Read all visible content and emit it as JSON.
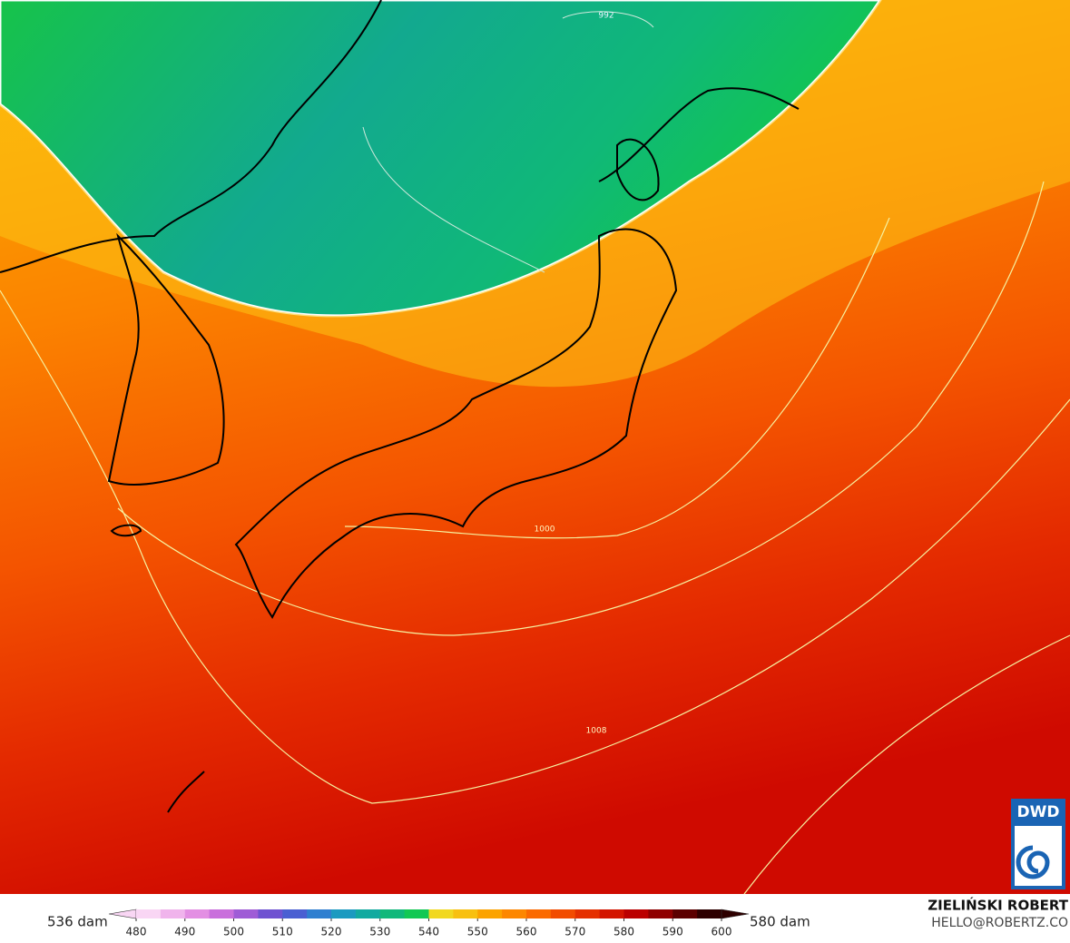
{
  "map": {
    "contour_labels": [
      {
        "text": "992"
      },
      {
        "text": "1000"
      },
      {
        "text": "1008"
      }
    ]
  },
  "colorbar": {
    "min_label": "536 dam",
    "max_label": "580 dam",
    "ticks": [
      480,
      490,
      500,
      510,
      520,
      530,
      540,
      550,
      560,
      570,
      580,
      590,
      600
    ],
    "colors": [
      "#f9d6f4",
      "#f0b4ec",
      "#e38fe3",
      "#c96fdc",
      "#9f5cd6",
      "#6f52d1",
      "#4a5fd2",
      "#2f7fd0",
      "#1b9ac0",
      "#12aaa0",
      "#10b87a",
      "#12c853",
      "#f1d820",
      "#f8c010",
      "#fca300",
      "#fd8700",
      "#fb6a00",
      "#f24c00",
      "#e53000",
      "#d31500",
      "#bb0000",
      "#8f0000",
      "#5c0000",
      "#2e0000"
    ]
  },
  "credits": {
    "author": "ZIELIŃSKI ROBERT",
    "email": "HELLO@ROBERTZ.CO",
    "logo": "DWD"
  }
}
